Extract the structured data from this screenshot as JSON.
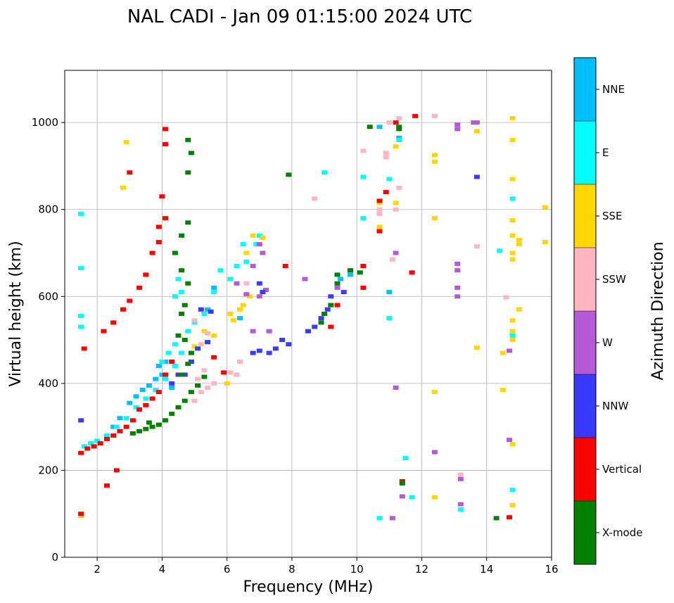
{
  "chart_data": {
    "type": "scatter",
    "title": "NAL CADI - Jan 09 01:15:00 2024 UTC",
    "xlabel": "Frequency (MHz)",
    "ylabel": "Virtual height (km)",
    "xlim": [
      1,
      16
    ],
    "ylim": [
      0,
      1120
    ],
    "xticks": [
      2,
      4,
      6,
      8,
      10,
      12,
      14,
      16
    ],
    "yticks": [
      0,
      200,
      400,
      600,
      800,
      1000
    ],
    "grid": true,
    "colorbar": {
      "title": "Azimuth Direction",
      "categories": [
        {
          "name": "X-mode",
          "color": "#008000"
        },
        {
          "name": "Vertical",
          "color": "#ff0000"
        },
        {
          "name": "NNW",
          "color": "#3a3aff"
        },
        {
          "name": "W",
          "color": "#b45ad6"
        },
        {
          "name": "SSW",
          "color": "#ffb6c1"
        },
        {
          "name": "SSE",
          "color": "#ffd700"
        },
        {
          "name": "E",
          "color": "#00ffff"
        },
        {
          "name": "NNE",
          "color": "#00bfff"
        }
      ]
    },
    "series": [
      {
        "name": "X-mode",
        "points": [
          [
            3.3,
            290
          ],
          [
            3.5,
            295
          ],
          [
            3.7,
            300
          ],
          [
            3.9,
            305
          ],
          [
            4.1,
            315
          ],
          [
            4.3,
            330
          ],
          [
            4.5,
            345
          ],
          [
            4.7,
            360
          ],
          [
            4.9,
            380
          ],
          [
            5.1,
            395
          ],
          [
            5.3,
            415
          ],
          [
            4.6,
            420
          ],
          [
            4.8,
            445
          ],
          [
            4.9,
            470
          ],
          [
            4.7,
            500
          ],
          [
            4.5,
            510
          ],
          [
            4.6,
            560
          ],
          [
            4.7,
            580
          ],
          [
            4.8,
            630
          ],
          [
            4.6,
            660
          ],
          [
            4.4,
            700
          ],
          [
            4.6,
            740
          ],
          [
            4.8,
            770
          ],
          [
            4.9,
            930
          ],
          [
            4.8,
            960
          ],
          [
            4.8,
            885
          ],
          [
            8.9,
            540
          ],
          [
            9.0,
            560
          ],
          [
            9.2,
            580
          ],
          [
            9.4,
            630
          ],
          [
            9.4,
            650
          ],
          [
            9.8,
            660
          ],
          [
            10.1,
            655
          ],
          [
            10.4,
            990
          ],
          [
            11.3,
            990
          ],
          [
            11.3,
            985
          ],
          [
            14.3,
            90
          ],
          [
            11.4,
            170
          ],
          [
            7.9,
            880
          ],
          [
            3.6,
            310
          ],
          [
            3.1,
            285
          ]
        ]
      },
      {
        "name": "Vertical",
        "points": [
          [
            1.5,
            240
          ],
          [
            1.7,
            250
          ],
          [
            1.9,
            255
          ],
          [
            2.1,
            262
          ],
          [
            2.3,
            272
          ],
          [
            2.5,
            280
          ],
          [
            2.7,
            290
          ],
          [
            2.9,
            300
          ],
          [
            3.1,
            315
          ],
          [
            3.3,
            340
          ],
          [
            3.5,
            350
          ],
          [
            3.7,
            365
          ],
          [
            3.9,
            380
          ],
          [
            4.1,
            420
          ],
          [
            4.3,
            450
          ],
          [
            1.6,
            480
          ],
          [
            2.2,
            520
          ],
          [
            2.5,
            540
          ],
          [
            2.8,
            570
          ],
          [
            3.0,
            590
          ],
          [
            3.3,
            620
          ],
          [
            3.5,
            650
          ],
          [
            3.7,
            700
          ],
          [
            3.9,
            725
          ],
          [
            3.9,
            760
          ],
          [
            4.1,
            780
          ],
          [
            4.0,
            830
          ],
          [
            4.1,
            985
          ],
          [
            4.1,
            950
          ],
          [
            3.0,
            885
          ],
          [
            7.8,
            670
          ],
          [
            9.2,
            530
          ],
          [
            9.4,
            580
          ],
          [
            10.2,
            620
          ],
          [
            10.2,
            670
          ],
          [
            10.7,
            750
          ],
          [
            10.7,
            820
          ],
          [
            10.9,
            840
          ],
          [
            11.2,
            1000
          ],
          [
            11.8,
            1015
          ],
          [
            11.7,
            655
          ],
          [
            14.7,
            92
          ],
          [
            11.4,
            175
          ],
          [
            1.5,
            100
          ],
          [
            2.3,
            165
          ],
          [
            2.6,
            200
          ],
          [
            5.9,
            425
          ],
          [
            5.6,
            460
          ]
        ]
      },
      {
        "name": "NNW",
        "points": [
          [
            4.3,
            400
          ],
          [
            4.5,
            420
          ],
          [
            4.7,
            420
          ],
          [
            4.9,
            450
          ],
          [
            5.1,
            480
          ],
          [
            5.4,
            495
          ],
          [
            5.2,
            570
          ],
          [
            5.5,
            565
          ],
          [
            6.8,
            470
          ],
          [
            7.0,
            475
          ],
          [
            7.3,
            470
          ],
          [
            7.5,
            480
          ],
          [
            7.9,
            490
          ],
          [
            7.7,
            500
          ],
          [
            8.5,
            520
          ],
          [
            8.7,
            530
          ],
          [
            8.9,
            550
          ],
          [
            9.1,
            570
          ],
          [
            9.4,
            580
          ],
          [
            9.6,
            610
          ],
          [
            7.1,
            610
          ],
          [
            7.0,
            630
          ],
          [
            9.2,
            600
          ],
          [
            13.7,
            875
          ],
          [
            1.5,
            315
          ]
        ]
      },
      {
        "name": "W",
        "points": [
          [
            6.3,
            630
          ],
          [
            6.6,
            605
          ],
          [
            7.0,
            600
          ],
          [
            7.2,
            615
          ],
          [
            6.8,
            520
          ],
          [
            7.3,
            520
          ],
          [
            6.8,
            670
          ],
          [
            7.0,
            720
          ],
          [
            7.1,
            700
          ],
          [
            8.4,
            640
          ],
          [
            9.4,
            620
          ],
          [
            13.1,
            995
          ],
          [
            13.1,
            985
          ],
          [
            13.6,
            1000
          ],
          [
            13.1,
            620
          ],
          [
            13.1,
            600
          ],
          [
            13.1,
            660
          ],
          [
            13.1,
            675
          ],
          [
            13.7,
            1000
          ],
          [
            11.2,
            700
          ],
          [
            11.2,
            390
          ],
          [
            14.7,
            270
          ],
          [
            14.7,
            475
          ],
          [
            13.2,
            180
          ],
          [
            13.2,
            122
          ],
          [
            12.4,
            242
          ],
          [
            11.4,
            140
          ],
          [
            11.1,
            90
          ]
        ]
      },
      {
        "name": "SSW",
        "points": [
          [
            5.0,
            360
          ],
          [
            5.2,
            380
          ],
          [
            5.4,
            390
          ],
          [
            5.6,
            400
          ],
          [
            5.3,
            430
          ],
          [
            5.2,
            490
          ],
          [
            5.4,
            515
          ],
          [
            5.0,
            545
          ],
          [
            6.1,
            425
          ],
          [
            6.4,
            450
          ],
          [
            6.3,
            420
          ],
          [
            6.6,
            630
          ],
          [
            8.7,
            825
          ],
          [
            10.2,
            935
          ],
          [
            10.7,
            790
          ],
          [
            10.7,
            800
          ],
          [
            11.0,
            1000
          ],
          [
            11.3,
            1010
          ],
          [
            12.4,
            1015
          ],
          [
            11.3,
            850
          ],
          [
            10.9,
            920
          ],
          [
            10.9,
            930
          ],
          [
            11.1,
            685
          ],
          [
            11.2,
            800
          ],
          [
            13.7,
            715
          ],
          [
            13.2,
            190
          ],
          [
            14.6,
            598
          ],
          [
            4.9,
            470
          ],
          [
            5.1,
            410
          ]
        ]
      },
      {
        "name": "SSE",
        "points": [
          [
            5.0,
            485
          ],
          [
            5.3,
            520
          ],
          [
            5.6,
            510
          ],
          [
            6.0,
            400
          ],
          [
            6.1,
            560
          ],
          [
            6.2,
            545
          ],
          [
            6.4,
            570
          ],
          [
            6.5,
            580
          ],
          [
            6.7,
            600
          ],
          [
            6.8,
            740
          ],
          [
            7.1,
            735
          ],
          [
            6.6,
            700
          ],
          [
            11.2,
            945
          ],
          [
            10.7,
            760
          ],
          [
            10.7,
            815
          ],
          [
            12.4,
            910
          ],
          [
            12.4,
            925
          ],
          [
            12.4,
            780
          ],
          [
            13.7,
            980
          ],
          [
            14.8,
            1010
          ],
          [
            14.8,
            960
          ],
          [
            14.8,
            870
          ],
          [
            14.8,
            775
          ],
          [
            14.8,
            740
          ],
          [
            14.8,
            700
          ],
          [
            14.8,
            685
          ],
          [
            15.0,
            730
          ],
          [
            15.0,
            720
          ],
          [
            15.0,
            570
          ],
          [
            14.8,
            545
          ],
          [
            14.8,
            520
          ],
          [
            14.8,
            500
          ],
          [
            13.7,
            482
          ],
          [
            14.5,
            470
          ],
          [
            14.5,
            385
          ],
          [
            12.4,
            380
          ],
          [
            14.8,
            260
          ],
          [
            12.4,
            138
          ],
          [
            14.8,
            120
          ],
          [
            15.8,
            805
          ],
          [
            15.8,
            725
          ],
          [
            1.5,
            95
          ],
          [
            2.8,
            850
          ],
          [
            2.9,
            955
          ],
          [
            11.2,
            815
          ]
        ]
      },
      {
        "name": "E",
        "points": [
          [
            1.6,
            255
          ],
          [
            1.8,
            262
          ],
          [
            2.0,
            268
          ],
          [
            2.3,
            280
          ],
          [
            2.6,
            300
          ],
          [
            2.9,
            320
          ],
          [
            3.2,
            345
          ],
          [
            3.5,
            365
          ],
          [
            3.8,
            385
          ],
          [
            4.1,
            410
          ],
          [
            4.4,
            440
          ],
          [
            4.6,
            470
          ],
          [
            4.8,
            520
          ],
          [
            5.0,
            540
          ],
          [
            5.3,
            560
          ],
          [
            5.6,
            610
          ],
          [
            5.8,
            660
          ],
          [
            4.2,
            470
          ],
          [
            4.4,
            490
          ],
          [
            4.0,
            450
          ],
          [
            4.4,
            600
          ],
          [
            4.6,
            610
          ],
          [
            4.5,
            640
          ],
          [
            6.1,
            640
          ],
          [
            6.3,
            670
          ],
          [
            6.5,
            720
          ],
          [
            6.9,
            720
          ],
          [
            7.0,
            740
          ],
          [
            6.6,
            680
          ],
          [
            9.0,
            885
          ],
          [
            10.2,
            875
          ],
          [
            10.2,
            780
          ],
          [
            11.0,
            870
          ],
          [
            11.3,
            960
          ],
          [
            11.0,
            550
          ],
          [
            11.5,
            228
          ],
          [
            11.7,
            138
          ],
          [
            14.8,
            155
          ],
          [
            14.8,
            825
          ],
          [
            14.8,
            510
          ],
          [
            14.4,
            705
          ],
          [
            10.7,
            90
          ],
          [
            13.2,
            110
          ],
          [
            1.5,
            665
          ],
          [
            1.5,
            790
          ],
          [
            1.5,
            555
          ],
          [
            1.5,
            530
          ]
        ]
      },
      {
        "name": "NNE",
        "points": [
          [
            3.0,
            355
          ],
          [
            3.4,
            385
          ],
          [
            3.6,
            395
          ],
          [
            3.8,
            410
          ],
          [
            4.0,
            420
          ],
          [
            3.9,
            440
          ],
          [
            4.1,
            450
          ],
          [
            4.3,
            390
          ],
          [
            2.7,
            320
          ],
          [
            2.5,
            300
          ],
          [
            3.2,
            370
          ],
          [
            5.4,
            570
          ],
          [
            5.6,
            620
          ],
          [
            6.4,
            550
          ],
          [
            9.5,
            640
          ],
          [
            9.8,
            650
          ],
          [
            10.7,
            990
          ],
          [
            11.3,
            965
          ],
          [
            11.0,
            610
          ]
        ]
      }
    ]
  }
}
